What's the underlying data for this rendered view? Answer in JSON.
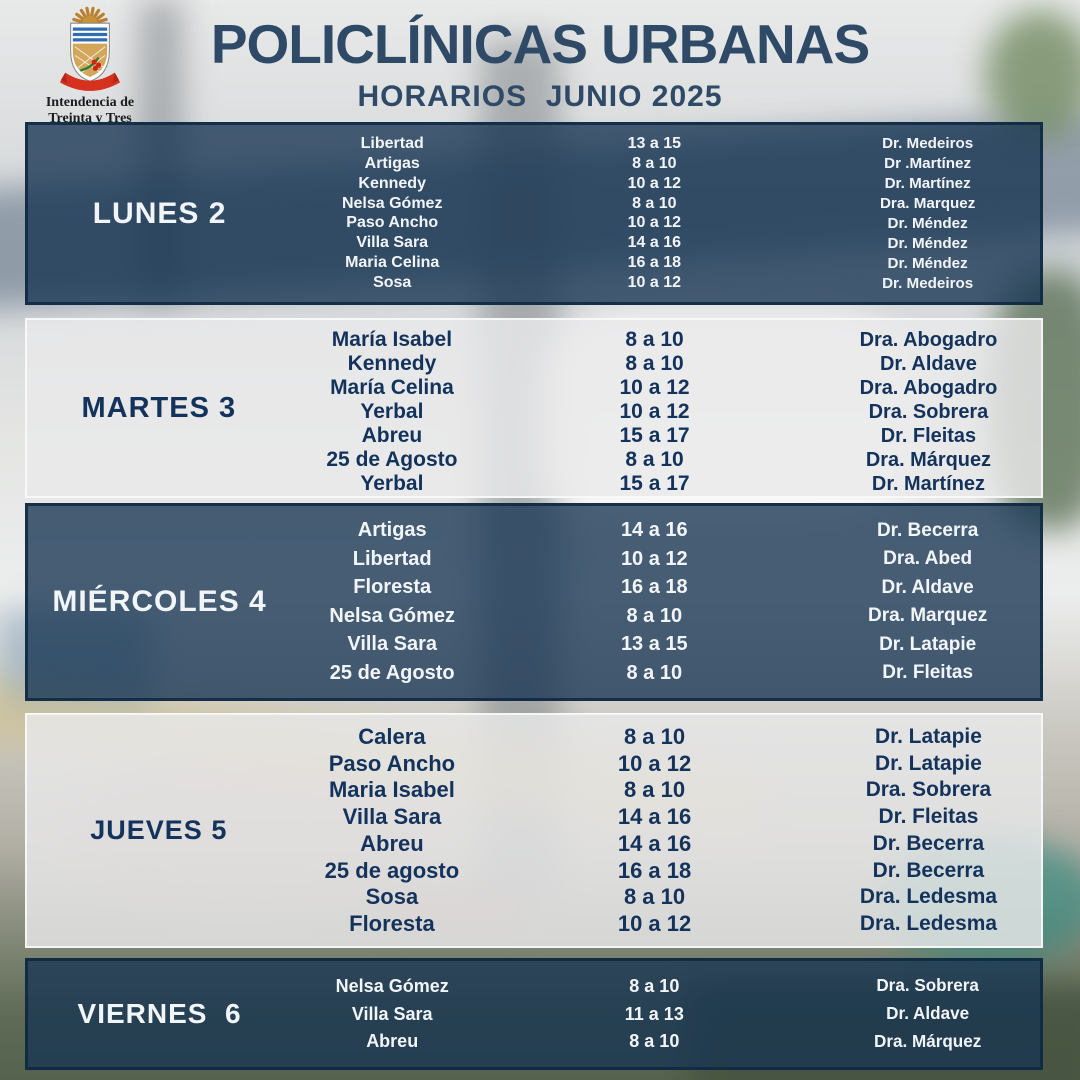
{
  "header": {
    "title": "POLICLÍNICAS URBANAS",
    "subtitle": "HORARIOS  JUNIO 2025",
    "logo_caption": "Intendencia de\nTreinta y Tres"
  },
  "colors": {
    "title-navy": "#2e4a67",
    "band-navy": "#16344f",
    "band-light": "#e9e9ea",
    "text-on-dark": "#f2f5f8",
    "text-on-light": "#14335c"
  },
  "days": [
    {
      "label": "LUNES 2",
      "theme": "dark",
      "rows": [
        {
          "location": "Libertad",
          "time": "13 a 15",
          "doctor": "Dr. Medeiros"
        },
        {
          "location": "Artigas",
          "time": "8 a 10",
          "doctor": "Dr .Martínez"
        },
        {
          "location": "Kennedy",
          "time": "10 a 12",
          "doctor": "Dr. Martínez"
        },
        {
          "location": "Nelsa Gómez",
          "time": "8 a 10",
          "doctor": "Dra. Marquez"
        },
        {
          "location": "Paso Ancho",
          "time": "10 a 12",
          "doctor": "Dr. Méndez"
        },
        {
          "location": "Villa Sara",
          "time": "14 a 16",
          "doctor": "Dr. Méndez"
        },
        {
          "location": "Maria Celina",
          "time": "16 a 18",
          "doctor": "Dr. Méndez"
        },
        {
          "location": "Sosa",
          "time": "10 a 12",
          "doctor": "Dr. Medeiros"
        }
      ]
    },
    {
      "label": "MARTES 3",
      "theme": "light",
      "rows": [
        {
          "location": "María Isabel",
          "time": "8 a 10",
          "doctor": "Dra. Abogadro"
        },
        {
          "location": "Kennedy",
          "time": "8 a 10",
          "doctor": "Dr. Aldave"
        },
        {
          "location": "María Celina",
          "time": "10 a 12",
          "doctor": "Dra. Abogadro"
        },
        {
          "location": "Yerbal",
          "time": "10 a 12",
          "doctor": "Dra. Sobrera"
        },
        {
          "location": "Abreu",
          "time": "15 a 17",
          "doctor": "Dr. Fleitas"
        },
        {
          "location": "25 de Agosto",
          "time": "8 a 10",
          "doctor": "Dra. Márquez"
        },
        {
          "location": "Yerbal",
          "time": "15 a 17",
          "doctor": "Dr. Martínez"
        }
      ]
    },
    {
      "label": "MIÉRCOLES 4",
      "theme": "dark",
      "rows": [
        {
          "location": "Artigas",
          "time": "14 a 16",
          "doctor": "Dr. Becerra"
        },
        {
          "location": "Libertad",
          "time": "10 a 12",
          "doctor": "Dra. Abed"
        },
        {
          "location": "Floresta",
          "time": "16 a 18",
          "doctor": "Dr. Aldave"
        },
        {
          "location": "Nelsa Gómez",
          "time": "8 a 10",
          "doctor": "Dra. Marquez"
        },
        {
          "location": "Villa Sara",
          "time": "13 a 15",
          "doctor": "Dr. Latapie"
        },
        {
          "location": "25 de Agosto",
          "time": "8 a 10",
          "doctor": "Dr. Fleitas"
        }
      ]
    },
    {
      "label": "JUEVES 5",
      "theme": "light",
      "rows": [
        {
          "location": "Calera",
          "time": "8 a 10",
          "doctor": "Dr. Latapie"
        },
        {
          "location": "Paso Ancho",
          "time": "10 a 12",
          "doctor": "Dr. Latapie"
        },
        {
          "location": "Maria Isabel",
          "time": "8 a 10",
          "doctor": "Dra. Sobrera"
        },
        {
          "location": "Villa Sara",
          "time": "14 a 16",
          "doctor": "Dr. Fleitas"
        },
        {
          "location": "Abreu",
          "time": "14 a 16",
          "doctor": "Dr. Becerra"
        },
        {
          "location": "25 de agosto",
          "time": "16 a 18",
          "doctor": "Dr. Becerra"
        },
        {
          "location": "Sosa",
          "time": "8 a 10",
          "doctor": "Dra. Ledesma"
        },
        {
          "location": "Floresta",
          "time": "10 a 12",
          "doctor": "Dra. Ledesma"
        }
      ]
    },
    {
      "label": "VIERNES  6",
      "theme": "dark",
      "rows": [
        {
          "location": "Nelsa Gómez",
          "time": "8 a 10",
          "doctor": "Dra. Sobrera"
        },
        {
          "location": "Villa Sara",
          "time": "11 a 13",
          "doctor": "Dr. Aldave"
        },
        {
          "location": "Abreu",
          "time": "8 a 10",
          "doctor": "Dra. Márquez"
        }
      ]
    }
  ]
}
